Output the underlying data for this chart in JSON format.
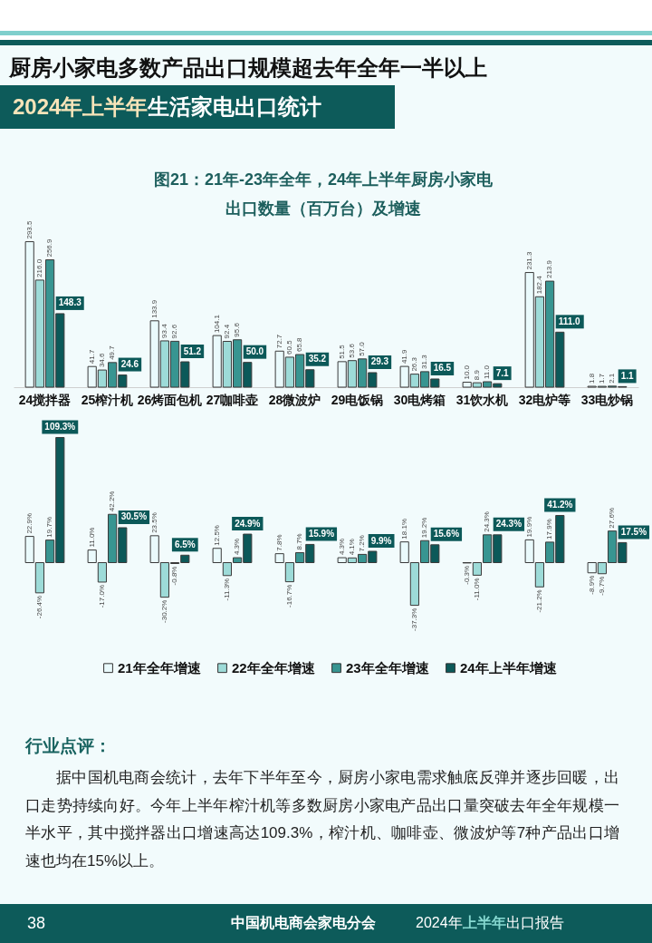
{
  "chart_data": [
    {
      "type": "bar",
      "title": "图21：21年-23年全年，24年上半年厨房小家电出口数量（百万台）及增速",
      "annotations": [
        "厨房小家电多数产品出口规模超去年全年一半以上",
        "2024年上半年",
        "生活家电出口统计"
      ],
      "categories": [
        "24搅拌器",
        "25榨汁机",
        "26烤面包机",
        "27咖啡壶",
        "28微波炉",
        "29电饭锅",
        "30电烤箱",
        "31饮水机",
        "32电炉等",
        "33电炒锅"
      ],
      "series": [
        {
          "color": "#eafafc",
          "values": [
            293.5,
            41.7,
            133.9,
            104.1,
            72.7,
            51.5,
            41.9,
            10.0,
            231.3,
            1.8
          ],
          "value_labels": [
            "293.5",
            "41.7",
            "133.9",
            "104.1",
            "72.7",
            "51.5",
            "41.9",
            "10.0",
            "231.3",
            "1.8"
          ]
        },
        {
          "color": "#9ddbd8",
          "values": [
            216.0,
            34.6,
            93.4,
            92.4,
            60.5,
            53.6,
            26.3,
            8.9,
            182.4,
            1.7
          ],
          "value_labels": [
            "216.0",
            "34.6",
            "93.4",
            "92.4",
            "60.5",
            "53.6",
            "26.3",
            "8.9",
            "182.4",
            "1.7"
          ]
        },
        {
          "color": "#389591",
          "values": [
            256.9,
            49.7,
            92.6,
            95.6,
            65.8,
            57.0,
            31.3,
            11.0,
            213.9,
            2.1
          ],
          "value_labels": [
            "256.9",
            "49.7",
            "92.6",
            "95.6",
            "65.8",
            "57.0",
            "31.3",
            "11.0",
            "213.9",
            "2.1"
          ]
        },
        {
          "color": "#0c5959",
          "values": [
            148.3,
            24.6,
            51.2,
            50.0,
            35.2,
            29.3,
            16.5,
            7.1,
            111.0,
            1.1
          ],
          "value_labels": [
            "148.3",
            "24.6",
            "51.2",
            "50.0",
            "35.2",
            "29.3",
            "16.5",
            "7.1",
            "111.0",
            "1.1"
          ]
        }
      ]
    },
    {
      "type": "bar",
      "legend": "bottom",
      "annotations": [
        "行业点评：",
        "据中国机电商会统计，去年下半年至今，厨房小家电需求触底反弹并逐步回暖，出口走势持续向好。今年上半年榨汁机等多数厨房小家电产品出口量突破去年全年规模一半水平，其中搅拌器出口增速高达109.3%，榨汁机、咖啡壶、微波炉等7种产品出口增速也均在15%以上。",
        "38",
        "中国机电商会家电分会",
        "2024年",
        "上半年",
        "出口报告"
      ],
      "categories": [
        null,
        null,
        null,
        null,
        null,
        null,
        null,
        null,
        null,
        null
      ],
      "series": [
        {
          "name": "21年全年增速",
          "color": "#eafafc",
          "values": [
            22.9,
            11.0,
            23.5,
            12.5,
            7.8,
            4.3,
            18.1,
            -0.3,
            19.9,
            -8.9
          ],
          "value_labels": [
            "22.9%",
            "11.0%",
            "23.5%",
            "12.5%",
            "7.8%",
            "4.3%",
            "18.1%",
            "-0.3%",
            "19.9%",
            "-8.9%"
          ]
        },
        {
          "name": "22年全年增速",
          "color": "#9ddbd8",
          "values": [
            -26.4,
            -17.0,
            -30.2,
            -11.3,
            -16.7,
            4.1,
            -37.3,
            -11.0,
            -21.2,
            -9.7
          ],
          "value_labels": [
            "-26.4%",
            "-17.0%",
            "-30.2%",
            "-11.3%",
            "-16.7%",
            "4.1%",
            "-37.3%",
            "-11.0%",
            "-21.2%",
            "-9.7%"
          ]
        },
        {
          "name": "23年全年增速",
          "color": "#389591",
          "values": [
            19.7,
            42.2,
            -0.8,
            4.3,
            8.7,
            7.2,
            19.2,
            24.3,
            17.9,
            27.6
          ],
          "value_labels": [
            "19.7%",
            "42.2%",
            "-0.8%",
            "4.3%",
            "8.7%",
            "7.2%",
            "19.2%",
            "24.3%",
            "17.9%",
            "27.6%"
          ]
        },
        {
          "name": "24年上半年增速",
          "color": "#0c5959",
          "values": [
            109.3,
            30.5,
            6.5,
            24.9,
            15.9,
            9.9,
            15.6,
            24.3,
            41.2,
            17.5
          ],
          "value_labels": [
            "109.3%",
            "30.5%",
            "6.5%",
            "24.9%",
            "15.9%",
            "9.9%",
            "15.6%",
            "24.3%",
            "41.2%",
            "17.5%"
          ]
        }
      ]
    }
  ]
}
